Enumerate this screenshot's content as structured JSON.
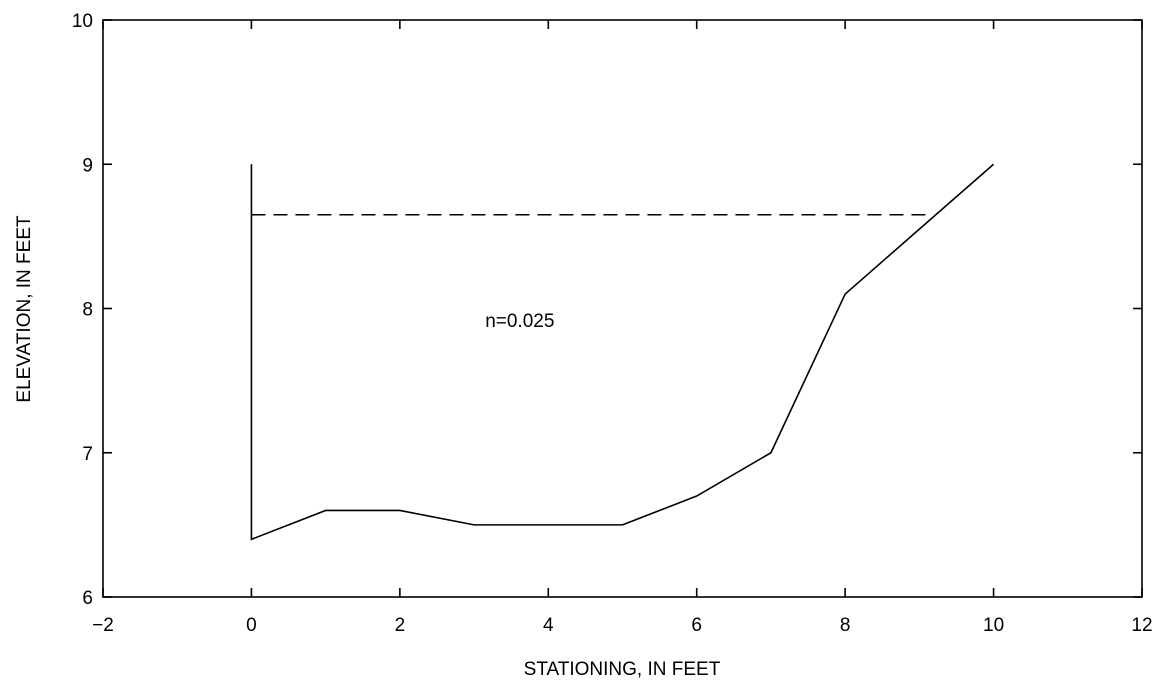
{
  "chart_data": {
    "type": "line",
    "xlabel": "STATIONING, IN FEET",
    "ylabel": "ELEVATION, IN FEET",
    "xlim": [
      -2,
      12
    ],
    "ylim": [
      6,
      10
    ],
    "xticks": [
      -2,
      0,
      2,
      4,
      6,
      8,
      10,
      12
    ],
    "yticks": [
      6,
      7,
      8,
      9,
      10
    ],
    "xtick_labels": [
      "−2",
      "0",
      "2",
      "4",
      "6",
      "8",
      "10",
      "12"
    ],
    "ytick_labels": [
      "6",
      "7",
      "8",
      "9",
      "10"
    ],
    "grid": false,
    "series": [
      {
        "style": "solid",
        "x": [
          0,
          0,
          1,
          2,
          3,
          4,
          5,
          6,
          7,
          8,
          9,
          10
        ],
        "y": [
          9.0,
          6.4,
          6.6,
          6.6,
          6.5,
          6.5,
          6.5,
          6.7,
          7.0,
          8.1,
          8.55,
          9.0
        ]
      },
      {
        "style": "dashed",
        "x": [
          0,
          9.1
        ],
        "y": [
          8.65,
          8.65
        ]
      }
    ],
    "annotations": [
      {
        "text": "n=0.025",
        "x": 3.15,
        "y": 7.92
      }
    ]
  }
}
